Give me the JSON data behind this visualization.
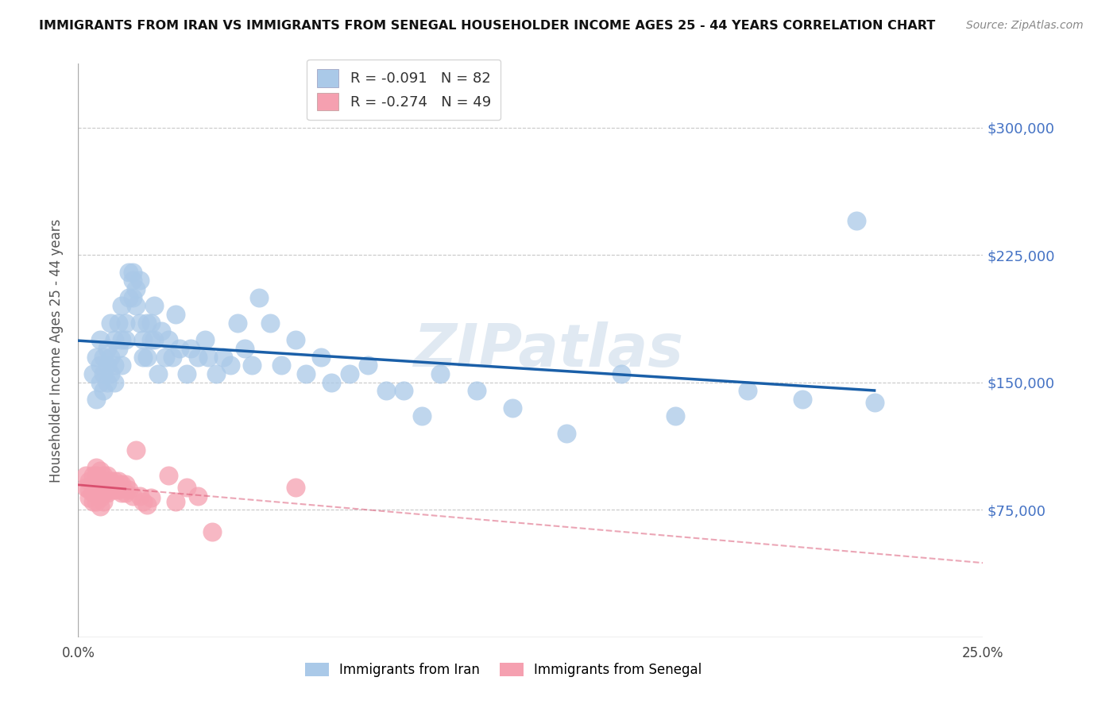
{
  "title": "IMMIGRANTS FROM IRAN VS IMMIGRANTS FROM SENEGAL HOUSEHOLDER INCOME AGES 25 - 44 YEARS CORRELATION CHART",
  "source": "Source: ZipAtlas.com",
  "ylabel": "Householder Income Ages 25 - 44 years",
  "xlim": [
    0.0,
    0.25
  ],
  "ylim": [
    0,
    337500
  ],
  "yticks": [
    0,
    75000,
    150000,
    225000,
    300000
  ],
  "ytick_labels": [
    "",
    "$75,000",
    "$150,000",
    "$225,000",
    "$300,000"
  ],
  "xticks": [
    0.0,
    0.05,
    0.1,
    0.15,
    0.2,
    0.25
  ],
  "xtick_labels": [
    "0.0%",
    "",
    "",
    "",
    "",
    "25.0%"
  ],
  "iran_color": "#aac9e8",
  "senegal_color": "#f5a0b0",
  "iran_line_color": "#1a5fa8",
  "senegal_line_color": "#d94f6e",
  "legend_iran_R": "-0.091",
  "legend_iran_N": "82",
  "legend_senegal_R": "-0.274",
  "legend_senegal_N": "49",
  "iran_x": [
    0.004,
    0.005,
    0.005,
    0.006,
    0.006,
    0.006,
    0.007,
    0.007,
    0.007,
    0.008,
    0.008,
    0.008,
    0.009,
    0.009,
    0.009,
    0.01,
    0.01,
    0.01,
    0.011,
    0.011,
    0.012,
    0.012,
    0.012,
    0.013,
    0.013,
    0.014,
    0.014,
    0.015,
    0.015,
    0.015,
    0.016,
    0.016,
    0.017,
    0.017,
    0.018,
    0.018,
    0.019,
    0.019,
    0.02,
    0.02,
    0.021,
    0.021,
    0.022,
    0.023,
    0.024,
    0.025,
    0.026,
    0.027,
    0.028,
    0.03,
    0.031,
    0.033,
    0.035,
    0.036,
    0.038,
    0.04,
    0.042,
    0.044,
    0.046,
    0.048,
    0.05,
    0.053,
    0.056,
    0.06,
    0.063,
    0.067,
    0.07,
    0.075,
    0.08,
    0.085,
    0.09,
    0.095,
    0.1,
    0.11,
    0.12,
    0.135,
    0.15,
    0.165,
    0.185,
    0.2,
    0.215,
    0.22
  ],
  "iran_y": [
    155000,
    140000,
    165000,
    150000,
    175000,
    160000,
    145000,
    165000,
    155000,
    160000,
    150000,
    170000,
    155000,
    165000,
    185000,
    160000,
    150000,
    175000,
    170000,
    185000,
    195000,
    175000,
    160000,
    185000,
    175000,
    200000,
    215000,
    215000,
    210000,
    200000,
    205000,
    195000,
    210000,
    185000,
    175000,
    165000,
    185000,
    165000,
    185000,
    175000,
    195000,
    175000,
    155000,
    180000,
    165000,
    175000,
    165000,
    190000,
    170000,
    155000,
    170000,
    165000,
    175000,
    165000,
    155000,
    165000,
    160000,
    185000,
    170000,
    160000,
    200000,
    185000,
    160000,
    175000,
    155000,
    165000,
    150000,
    155000,
    160000,
    145000,
    145000,
    130000,
    155000,
    145000,
    135000,
    120000,
    155000,
    130000,
    145000,
    140000,
    245000,
    138000
  ],
  "senegal_x": [
    0.002,
    0.002,
    0.003,
    0.003,
    0.003,
    0.004,
    0.004,
    0.004,
    0.004,
    0.005,
    0.005,
    0.005,
    0.005,
    0.005,
    0.006,
    0.006,
    0.006,
    0.006,
    0.006,
    0.007,
    0.007,
    0.007,
    0.007,
    0.008,
    0.008,
    0.008,
    0.009,
    0.009,
    0.01,
    0.01,
    0.011,
    0.011,
    0.012,
    0.012,
    0.013,
    0.013,
    0.014,
    0.015,
    0.016,
    0.017,
    0.018,
    0.019,
    0.02,
    0.025,
    0.027,
    0.03,
    0.033,
    0.037,
    0.06
  ],
  "senegal_y": [
    95000,
    88000,
    92000,
    87000,
    82000,
    95000,
    90000,
    85000,
    80000,
    100000,
    95000,
    90000,
    85000,
    80000,
    98000,
    93000,
    88000,
    82000,
    77000,
    95000,
    90000,
    85000,
    80000,
    95000,
    90000,
    85000,
    92000,
    87000,
    92000,
    87000,
    92000,
    87000,
    90000,
    85000,
    90000,
    85000,
    87000,
    83000,
    110000,
    83000,
    80000,
    78000,
    82000,
    95000,
    80000,
    88000,
    83000,
    62000,
    88000
  ],
  "watermark": "ZIPatlas",
  "background_color": "#ffffff",
  "grid_color": "#c8c8c8"
}
